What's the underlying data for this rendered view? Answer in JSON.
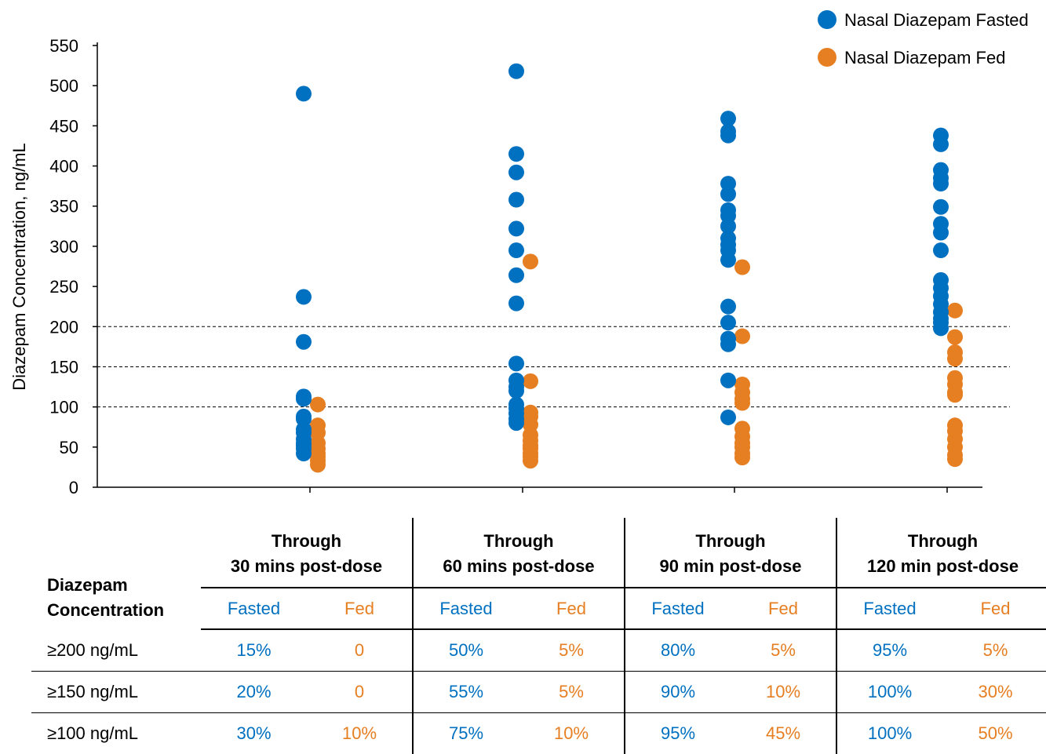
{
  "chart_data": {
    "type": "scatter",
    "ylabel": "Diazepam Concentration, ng/mL",
    "xlabel": "",
    "ylim": [
      0,
      550
    ],
    "yticks": [
      0,
      50,
      100,
      150,
      200,
      250,
      300,
      350,
      400,
      450,
      500,
      550
    ],
    "reference_lines": [
      100,
      150,
      200
    ],
    "legend": {
      "placement": "top-right",
      "entries": [
        "Nasal Diazepam Fasted",
        "Nasal Diazepam Fed"
      ]
    },
    "colors": {
      "fasted": "#0070C0",
      "fed": "#E67E22"
    },
    "categories": [
      "Through 30 mins post-dose",
      "Through 60 mins post-dose",
      "Through 90 min post-dose",
      "Through 120 min post-dose"
    ],
    "series": [
      {
        "name": "Nasal Diazepam Fasted",
        "values": [
          [
            490,
            237,
            181,
            113,
            110,
            88,
            85,
            72,
            68,
            60,
            55,
            52,
            48,
            42
          ],
          [
            518,
            415,
            392,
            358,
            322,
            295,
            264,
            229,
            154,
            133,
            125,
            120,
            103,
            98,
            92,
            85,
            80
          ],
          [
            459,
            443,
            438,
            378,
            365,
            345,
            338,
            325,
            310,
            302,
            295,
            283,
            225,
            205,
            185,
            178,
            133,
            87
          ],
          [
            438,
            427,
            395,
            385,
            378,
            349,
            328,
            317,
            295,
            258,
            248,
            238,
            228,
            218,
            210,
            205,
            198
          ]
        ]
      },
      {
        "name": "Nasal Diazepam Fed",
        "values": [
          [
            103,
            77,
            68,
            55,
            48,
            42,
            38,
            33,
            28
          ],
          [
            281,
            132,
            93,
            88,
            78,
            65,
            58,
            52,
            48,
            42,
            38,
            33
          ],
          [
            274,
            188,
            128,
            118,
            110,
            105,
            73,
            63,
            55,
            50,
            42,
            37
          ],
          [
            220,
            187,
            168,
            160,
            136,
            128,
            118,
            115,
            77,
            70,
            60,
            50,
            40,
            35
          ]
        ]
      }
    ]
  },
  "table": {
    "diazepam_head_line1": "Diazepam",
    "diazepam_head_line2": "Concentration",
    "groups": [
      {
        "line1": "Through",
        "line2": "30 mins post-dose"
      },
      {
        "line1": "Through",
        "line2": "60 mins post-dose"
      },
      {
        "line1": "Through",
        "line2": "90 min post-dose"
      },
      {
        "line1": "Through",
        "line2": "120 min post-dose"
      }
    ],
    "sub_fasted": "Fasted",
    "sub_fed": "Fed",
    "rows": [
      {
        "label": "≥200 ng/mL",
        "values": [
          "15%",
          "0",
          "50%",
          "5%",
          "80%",
          "5%",
          "95%",
          "5%"
        ]
      },
      {
        "label": "≥150 ng/mL",
        "values": [
          "20%",
          "0",
          "55%",
          "5%",
          "90%",
          "10%",
          "100%",
          "30%"
        ]
      },
      {
        "label": "≥100 ng/mL",
        "values": [
          "30%",
          "10%",
          "75%",
          "10%",
          "95%",
          "45%",
          "100%",
          "50%"
        ]
      }
    ]
  }
}
